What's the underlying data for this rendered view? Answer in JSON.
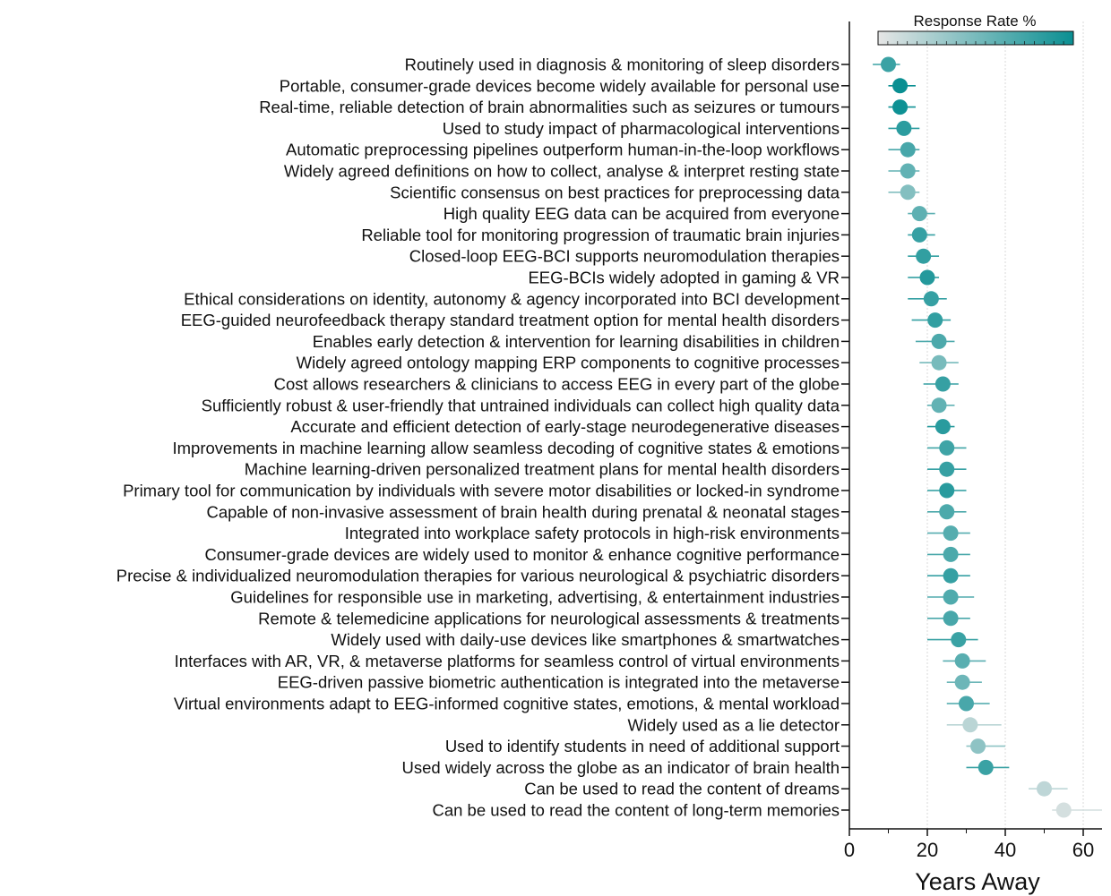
{
  "chart_data": {
    "type": "scatter",
    "xlabel": "Years Away",
    "xlim": [
      0,
      65
    ],
    "xticks": [
      0,
      20,
      40,
      60
    ],
    "grid": "vertical dotted at x ticks",
    "legend": {
      "title": "Response Rate %",
      "placement": "top-right",
      "color_low": "#e6e6e6",
      "color_high": "#0a8f92"
    },
    "colors": {
      "axis": "#111111",
      "grid": "#d0d0d0"
    },
    "items": [
      {
        "label": "Routinely used in diagnosis & monitoring of sleep disorders",
        "median": 10,
        "low": 6,
        "high": 13,
        "response": 0.78
      },
      {
        "label": "Portable, consumer-grade devices become widely available for personal use",
        "median": 13,
        "low": 10,
        "high": 17,
        "response": 1.0
      },
      {
        "label": "Real-time, reliable detection of brain abnormalities such as seizures or tumours",
        "median": 13,
        "low": 10,
        "high": 17,
        "response": 0.98
      },
      {
        "label": "Used to study impact of pharmacological interventions",
        "median": 14,
        "low": 10,
        "high": 18,
        "response": 0.85
      },
      {
        "label": "Automatic preprocessing pipelines outperform human-in-the-loop workflows",
        "median": 15,
        "low": 10,
        "high": 18,
        "response": 0.72
      },
      {
        "label": "Widely agreed definitions on how to collect, analyse & interpret resting state",
        "median": 15,
        "low": 10,
        "high": 18,
        "response": 0.6
      },
      {
        "label": "Scientific consensus on best practices for preprocessing data",
        "median": 15,
        "low": 10,
        "high": 18,
        "response": 0.45
      },
      {
        "label": "High quality EEG data can be acquired from everyone",
        "median": 18,
        "low": 15,
        "high": 22,
        "response": 0.62
      },
      {
        "label": "Reliable tool for monitoring progression of traumatic brain injuries",
        "median": 18,
        "low": 15,
        "high": 22,
        "response": 0.8
      },
      {
        "label": "Closed-loop EEG-BCI supports neuromodulation therapies",
        "median": 19,
        "low": 15,
        "high": 23,
        "response": 0.82
      },
      {
        "label": "EEG-BCIs widely adopted in gaming & VR",
        "median": 20,
        "low": 15,
        "high": 23,
        "response": 0.88
      },
      {
        "label": "Ethical considerations on identity, autonomy & agency incorporated into BCI development",
        "median": 21,
        "low": 15,
        "high": 25,
        "response": 0.8
      },
      {
        "label": "EEG-guided neurofeedback therapy standard treatment option for mental health disorders",
        "median": 22,
        "low": 16,
        "high": 26,
        "response": 0.82
      },
      {
        "label": "Enables early detection & intervention for learning disabilities in children",
        "median": 23,
        "low": 17,
        "high": 27,
        "response": 0.7
      },
      {
        "label": "Widely agreed ontology mapping ERP components to cognitive processes",
        "median": 23,
        "low": 18,
        "high": 28,
        "response": 0.5
      },
      {
        "label": "Cost allows researchers & clinicians to access EEG in every part of the globe",
        "median": 24,
        "low": 19,
        "high": 28,
        "response": 0.8
      },
      {
        "label": "Sufficiently robust & user-friendly that untrained individuals can collect high quality data",
        "median": 23,
        "low": 20,
        "high": 27,
        "response": 0.6
      },
      {
        "label": "Accurate and efficient detection of early-stage neurodegenerative diseases",
        "median": 24,
        "low": 20,
        "high": 27,
        "response": 0.86
      },
      {
        "label": "Improvements in machine learning allow seamless decoding of cognitive states & emotions",
        "median": 25,
        "low": 20,
        "high": 30,
        "response": 0.76
      },
      {
        "label": "Machine learning-driven personalized treatment plans for mental health disorders",
        "median": 25,
        "low": 20,
        "high": 30,
        "response": 0.8
      },
      {
        "label": "Primary tool for communication by individuals with severe motor disabilities or locked-in syndrome",
        "median": 25,
        "low": 20,
        "high": 30,
        "response": 0.86
      },
      {
        "label": "Capable of non-invasive assessment of brain health during prenatal & neonatal stages",
        "median": 25,
        "low": 20,
        "high": 30,
        "response": 0.7
      },
      {
        "label": "Integrated into workplace safety protocols in high-risk environments",
        "median": 26,
        "low": 20,
        "high": 31,
        "response": 0.66
      },
      {
        "label": "Consumer-grade devices are widely used to monitor & enhance cognitive performance",
        "median": 26,
        "low": 20,
        "high": 31,
        "response": 0.7
      },
      {
        "label": "Precise & individualized neuromodulation therapies for various neurological & psychiatric disorders",
        "median": 26,
        "low": 20,
        "high": 31,
        "response": 0.8
      },
      {
        "label": "Guidelines for responsible use in marketing, advertising, & entertainment industries",
        "median": 26,
        "low": 20,
        "high": 32,
        "response": 0.68
      },
      {
        "label": "Remote & telemedicine applications for neurological assessments & treatments",
        "median": 26,
        "low": 20,
        "high": 31,
        "response": 0.72
      },
      {
        "label": "Widely used with daily-use devices like smartphones & smartwatches",
        "median": 28,
        "low": 20,
        "high": 33,
        "response": 0.78
      },
      {
        "label": "Interfaces with AR, VR, & metaverse platforms for seamless control of virtual environments",
        "median": 29,
        "low": 24,
        "high": 35,
        "response": 0.64
      },
      {
        "label": "EEG-driven passive biometric authentication is integrated into the metaverse",
        "median": 29,
        "low": 25,
        "high": 34,
        "response": 0.55
      },
      {
        "label": "Virtual environments adapt to EEG-informed cognitive states, emotions, & mental workload",
        "median": 30,
        "low": 25,
        "high": 36,
        "response": 0.72
      },
      {
        "label": "Widely used as a lie detector",
        "median": 31,
        "low": 25,
        "high": 39,
        "response": 0.2
      },
      {
        "label": "Used to identify students in need of additional support",
        "median": 33,
        "low": 30,
        "high": 40,
        "response": 0.4
      },
      {
        "label": "Used widely across the globe as an indicator of brain health",
        "median": 35,
        "low": 30,
        "high": 41,
        "response": 0.78
      },
      {
        "label": "Can be used to read the content of dreams",
        "median": 50,
        "low": 46,
        "high": 56,
        "response": 0.18
      },
      {
        "label": "Can be used to read the content of long-term memories",
        "median": 55,
        "low": 52,
        "high": 65,
        "response": 0.08
      }
    ]
  }
}
